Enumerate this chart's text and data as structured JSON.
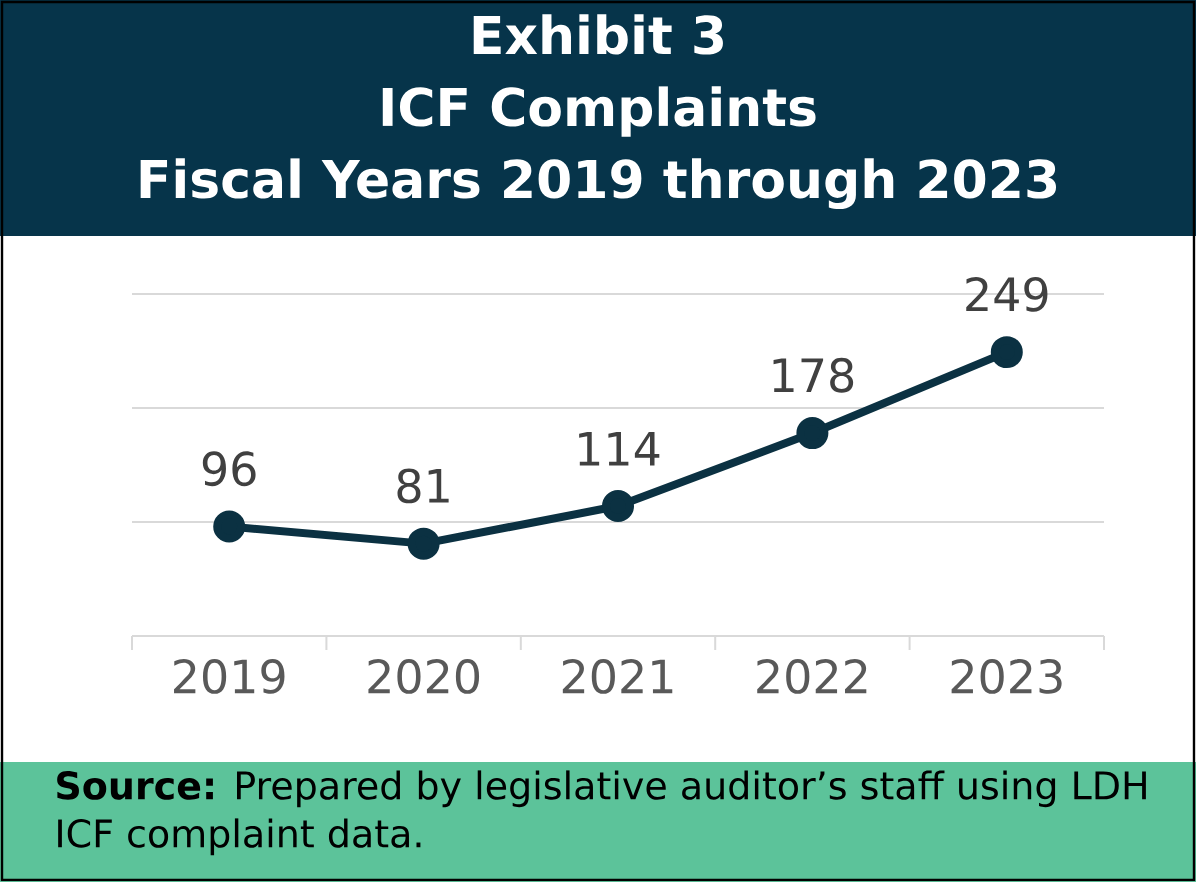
{
  "chart_data": {
    "type": "line",
    "title": "Exhibit 3",
    "subtitle": "ICF Complaints Fiscal Years 2019 through 2023",
    "categories": [
      "2019",
      "2020",
      "2021",
      "2022",
      "2023"
    ],
    "values": [
      96,
      81,
      114,
      178,
      249
    ],
    "color": "#0b3142",
    "ylim": [
      0,
      300
    ],
    "yticks": [
      {
        "value": 0,
        "label": null
      },
      {
        "value": 100,
        "label": null
      },
      {
        "value": 200,
        "label": null
      },
      {
        "value": 300,
        "label": null
      }
    ],
    "tick_labels": "x",
    "grid": "y",
    "marker": "circle",
    "line_style": "solid",
    "data_labels": true,
    "annotations": [
      "**Source:** Prepared by legislative auditor’s staff using LDH ICF complaint data."
    ]
  }
}
